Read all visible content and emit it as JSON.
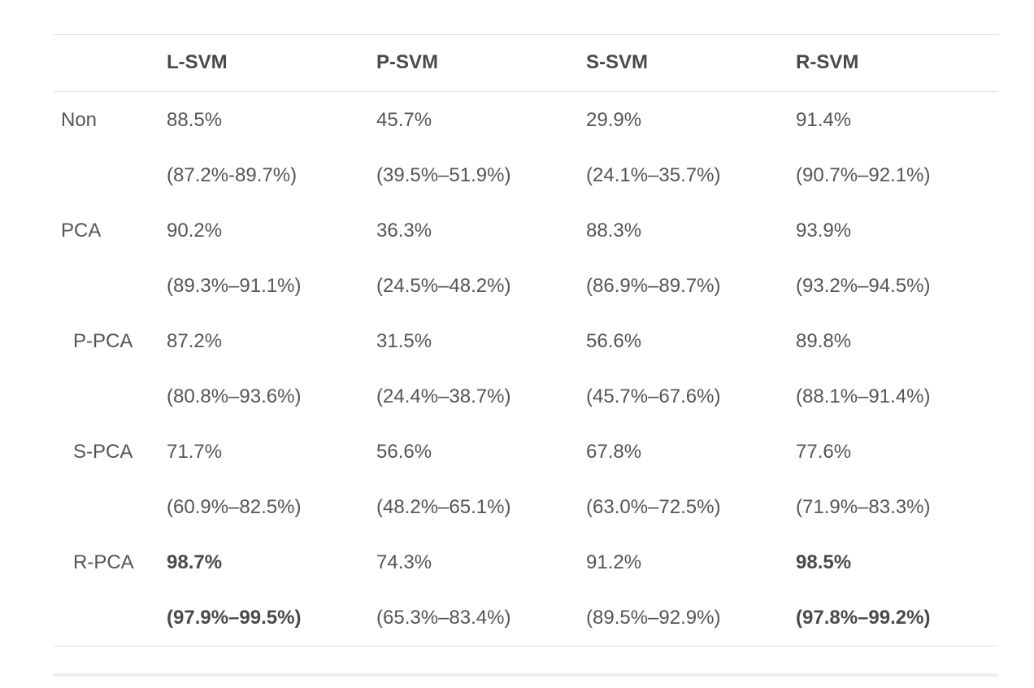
{
  "table": {
    "columns": [
      "",
      "L-SVM",
      "P-SVM",
      "S-SVM",
      "R-SVM"
    ],
    "rows": [
      {
        "label": "Non",
        "indent": false,
        "values": [
          "88.5%",
          "45.7%",
          "29.9%",
          "91.4%"
        ],
        "ranges": [
          "(87.2%-89.7%)",
          "(39.5%–51.9%)",
          "(24.1%–35.7%)",
          "(90.7%–92.1%)"
        ],
        "bold": [
          false,
          false,
          false,
          false
        ]
      },
      {
        "label": "PCA",
        "indent": false,
        "values": [
          "90.2%",
          "36.3%",
          "88.3%",
          "93.9%"
        ],
        "ranges": [
          "(89.3%–91.1%)",
          "(24.5%–48.2%)",
          "(86.9%–89.7%)",
          "(93.2%–94.5%)"
        ],
        "bold": [
          false,
          false,
          false,
          false
        ]
      },
      {
        "label": "P-PCA",
        "indent": true,
        "values": [
          "87.2%",
          "31.5%",
          "56.6%",
          "89.8%"
        ],
        "ranges": [
          "(80.8%–93.6%)",
          "(24.4%–38.7%)",
          "(45.7%–67.6%)",
          "(88.1%–91.4%)"
        ],
        "bold": [
          false,
          false,
          false,
          false
        ]
      },
      {
        "label": "S-PCA",
        "indent": true,
        "values": [
          "71.7%",
          "56.6%",
          "67.8%",
          "77.6%"
        ],
        "ranges": [
          "(60.9%–82.5%)",
          "(48.2%–65.1%)",
          "(63.0%–72.5%)",
          "(71.9%–83.3%)"
        ],
        "bold": [
          false,
          false,
          false,
          false
        ]
      },
      {
        "label": "R-PCA",
        "indent": true,
        "values": [
          "98.7%",
          "74.3%",
          "91.2%",
          "98.5%"
        ],
        "ranges": [
          "(97.9%–99.5%)",
          "(65.3%–83.4%)",
          "(89.5%–92.9%)",
          "(97.8%–99.2%)"
        ],
        "bold": [
          true,
          false,
          false,
          true
        ]
      }
    ]
  }
}
